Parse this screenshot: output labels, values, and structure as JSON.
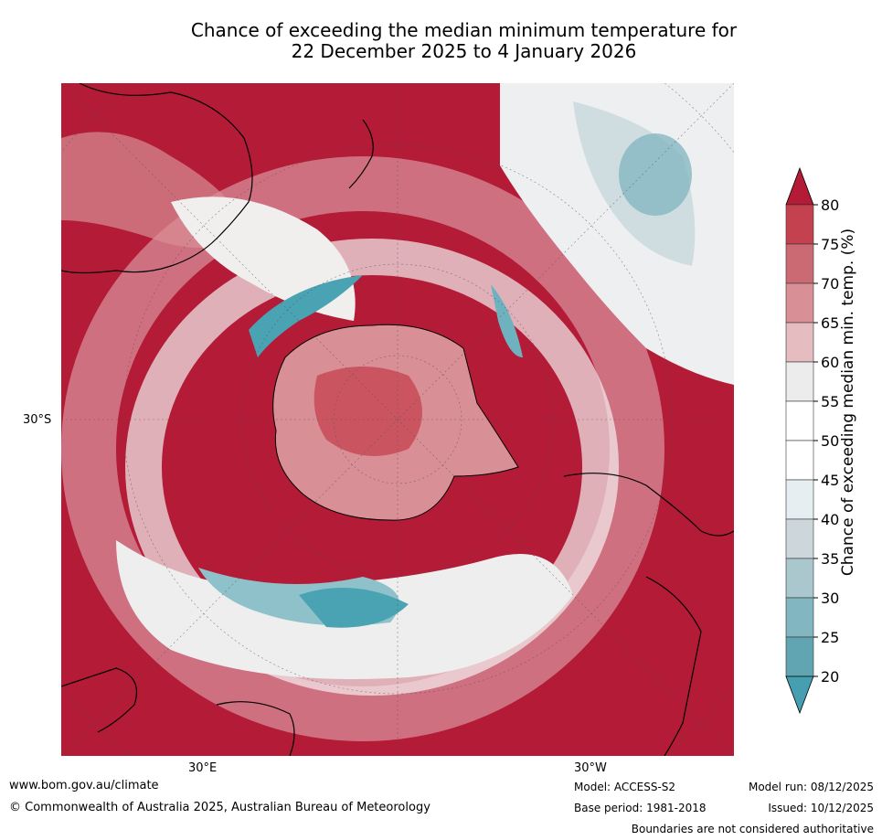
{
  "title": {
    "line1": "Chance of exceeding the median minimum temperature for",
    "line2": "22 December 2025 to 4 January 2026"
  },
  "map": {
    "projection": "south-polar stereographic",
    "lat_label": "30°S",
    "lon_labels": [
      "30°E",
      "30°W"
    ],
    "colors": {
      "high": "#b31b37",
      "neutral": "#f4f4f4",
      "low": "#4aa3b3"
    }
  },
  "colorbar": {
    "title": "Chance of exceeding median min. temp. (%)",
    "ticks": [
      "80",
      "75",
      "70",
      "65",
      "60",
      "55",
      "50",
      "45",
      "40",
      "35",
      "30",
      "25",
      "20"
    ],
    "colors": [
      "#b31b37",
      "#c4424f",
      "#cc6a73",
      "#d98f96",
      "#e5bcc0",
      "#ececec",
      "#ffffff",
      "#ffffff",
      "#e6eef1",
      "#cdd7db",
      "#a9c7cc",
      "#82b6c1",
      "#62a5b2",
      "#459fb0"
    ],
    "extend": "both"
  },
  "footer": {
    "website": "www.bom.gov.au/climate",
    "copyright": "© Commonwealth of Australia 2025, Australian Bureau of Meteorology",
    "model": "Model: ACCESS-S2",
    "base_period": "Base period: 1981-2018",
    "model_run": "Model run: 08/12/2025",
    "issued": "Issued: 10/12/2025",
    "disclaimer": "Boundaries are not considered authoritative"
  }
}
